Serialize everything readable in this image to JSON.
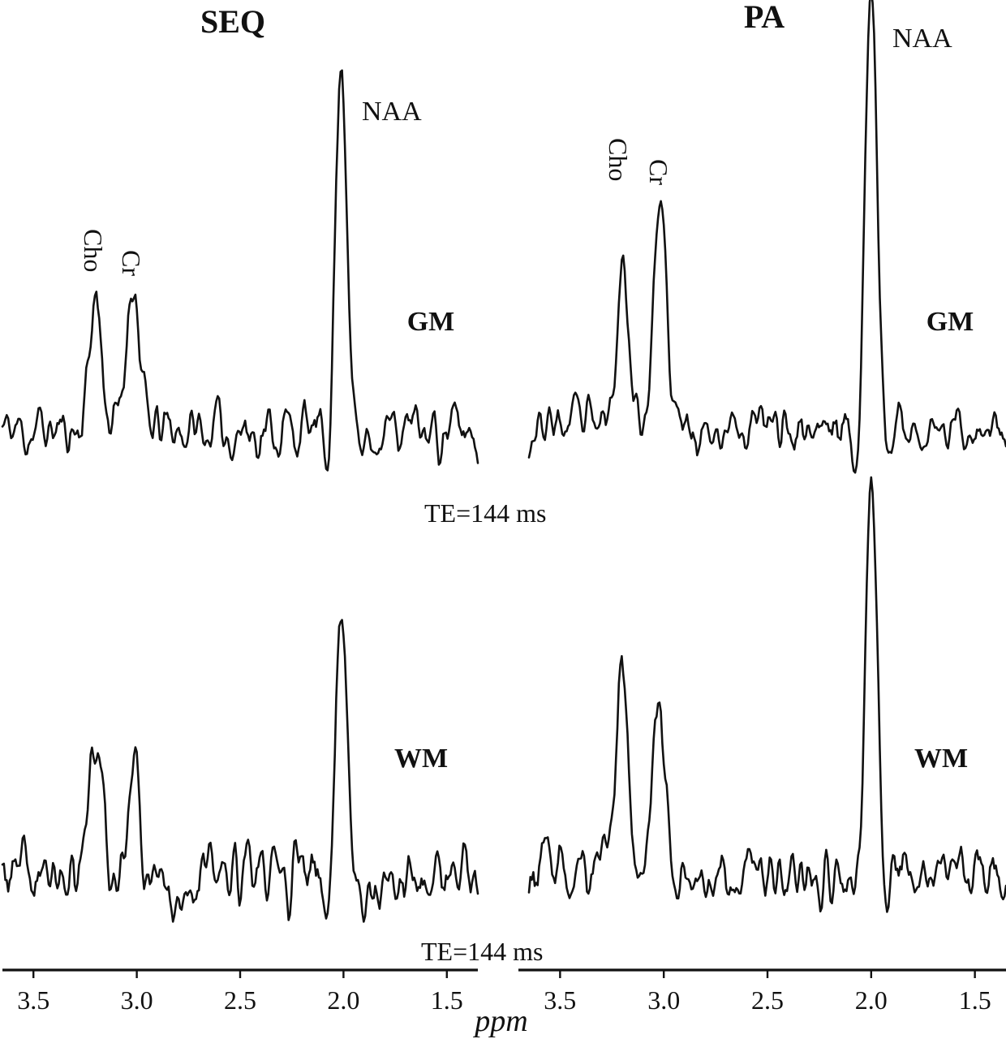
{
  "figure": {
    "column_titles": [
      "SEQ",
      "PA"
    ],
    "x_axis_label": "ppm",
    "x_ticks": [
      3.5,
      3.0,
      2.5,
      2.0,
      1.5
    ],
    "x_tick_labels": [
      "3.5",
      "3.0",
      "2.5",
      "2.0",
      "1.5"
    ],
    "x_range": [
      3.65,
      1.35
    ],
    "x_reversed": true,
    "te_label": "TE=144 ms",
    "tissue_labels": [
      "GM",
      "WM"
    ],
    "peak_labels": {
      "naa": "NAA",
      "cho": "Cho",
      "cr": "Cr"
    }
  },
  "chart_data": [
    {
      "type": "line",
      "title": "SEQ",
      "tissue": "GM",
      "xlabel": "ppm",
      "xlim": [
        3.65,
        1.35
      ],
      "ylim": [
        -0.15,
        1.0
      ],
      "grid": false,
      "annotations": [
        "NAA",
        "Cho",
        "Cr",
        "GM",
        "TE=144 ms"
      ],
      "peaks": [
        {
          "name": "Cho",
          "ppm": 3.2,
          "height": 0.33
        },
        {
          "name": "Cr",
          "ppm": 3.02,
          "height": 0.38
        },
        {
          "name": "NAA",
          "ppm": 2.01,
          "height": 0.9
        }
      ],
      "noise_amplitude": 0.07,
      "seed": 11
    },
    {
      "type": "line",
      "title": "PA",
      "tissue": "GM",
      "xlabel": "ppm",
      "xlim": [
        3.65,
        1.35
      ],
      "ylim": [
        -0.15,
        1.0
      ],
      "grid": false,
      "annotations": [
        "NAA",
        "Cho",
        "Cr",
        "GM"
      ],
      "peaks": [
        {
          "name": "Cho",
          "ppm": 3.2,
          "height": 0.38
        },
        {
          "name": "Cr",
          "ppm": 3.02,
          "height": 0.52
        },
        {
          "name": "NAA",
          "ppm": 2.0,
          "height": 1.0
        }
      ],
      "noise_amplitude": 0.06,
      "seed": 23
    },
    {
      "type": "line",
      "title": "SEQ",
      "tissue": "WM",
      "xlabel": "ppm",
      "xlim": [
        3.65,
        1.35
      ],
      "ylim": [
        -0.15,
        1.0
      ],
      "grid": false,
      "annotations": [
        "WM",
        "TE=144 ms"
      ],
      "peaks": [
        {
          "name": "Cho",
          "ppm": 3.2,
          "height": 0.3
        },
        {
          "name": "Cr",
          "ppm": 3.02,
          "height": 0.25
        },
        {
          "name": "NAA",
          "ppm": 2.01,
          "height": 0.58
        }
      ],
      "noise_amplitude": 0.07,
      "seed": 37
    },
    {
      "type": "line",
      "title": "PA",
      "tissue": "WM",
      "xlabel": "ppm",
      "xlim": [
        3.65,
        1.35
      ],
      "ylim": [
        -0.15,
        1.0
      ],
      "grid": false,
      "annotations": [
        "WM"
      ],
      "peaks": [
        {
          "name": "Cho",
          "ppm": 3.2,
          "height": 0.52
        },
        {
          "name": "Cr",
          "ppm": 3.02,
          "height": 0.42
        },
        {
          "name": "NAA",
          "ppm": 2.0,
          "height": 0.98
        }
      ],
      "noise_amplitude": 0.07,
      "seed": 53
    }
  ]
}
